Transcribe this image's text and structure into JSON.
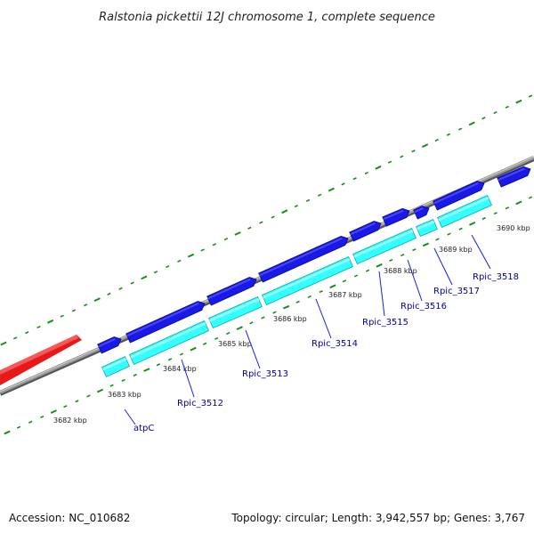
{
  "title": "Ralstonia pickettii 12J chromosome 1, complete sequence",
  "footer": {
    "accession": "Accession: NC_010682",
    "summary": "Topology: circular; Length: 3,942,557 bp; Genes: 3,767"
  },
  "colors": {
    "backbone": "#8c8c8c",
    "gene_forward": "#1a1ae6",
    "gene_forward_dark": "#0000a0",
    "cds_reverse": "#33ffff",
    "cds_reverse_dark": "#00aaaa",
    "other_feature": "#ff1a1a",
    "tick_major": "#1a8c1a",
    "tick_minor": "#339933",
    "label_line": "#1a1ae6",
    "label_text": "#0000a0"
  },
  "kbp_labels": [
    "3682 kbp",
    "3683 kbp",
    "3684 kbp",
    "3685 kbp",
    "3686 kbp",
    "3687 kbp",
    "3688 kbp",
    "3689 kbp",
    "3690 kbp"
  ],
  "gene_labels": [
    "atpC",
    "Rpic_3512",
    "Rpic_3513",
    "Rpic_3514",
    "Rpic_3515",
    "Rpic_3516",
    "Rpic_3517",
    "Rpic_3518"
  ]
}
